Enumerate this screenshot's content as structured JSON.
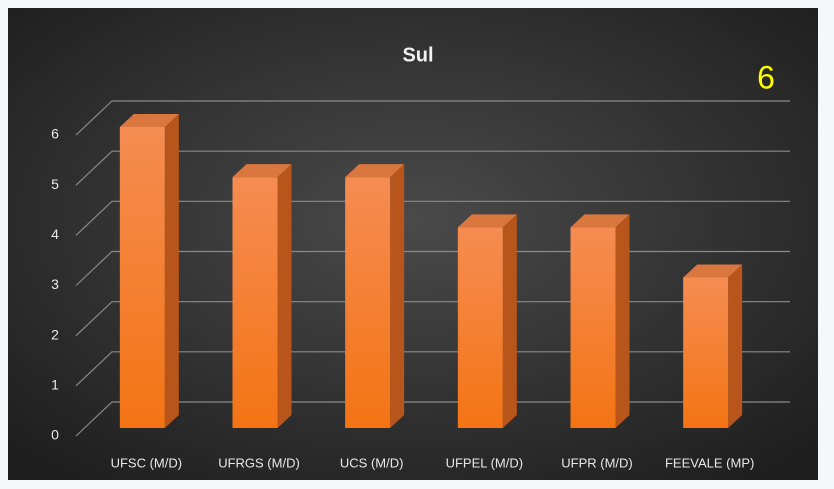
{
  "chart_data": {
    "type": "bar",
    "title": "Sul",
    "annotation": "6",
    "categories": [
      "UFSC (M/D)",
      "UFRGS (M/D)",
      "UCS (M/D)",
      "UFPEL (M/D)",
      "UFPR (M/D)",
      "FEEVALE (MP)"
    ],
    "values": [
      6,
      5,
      5,
      4,
      4,
      3
    ],
    "color": "#f47c28",
    "ylim": [
      0,
      6
    ],
    "yticks": [
      0,
      1,
      2,
      3,
      4,
      5,
      6
    ],
    "grid": true
  }
}
